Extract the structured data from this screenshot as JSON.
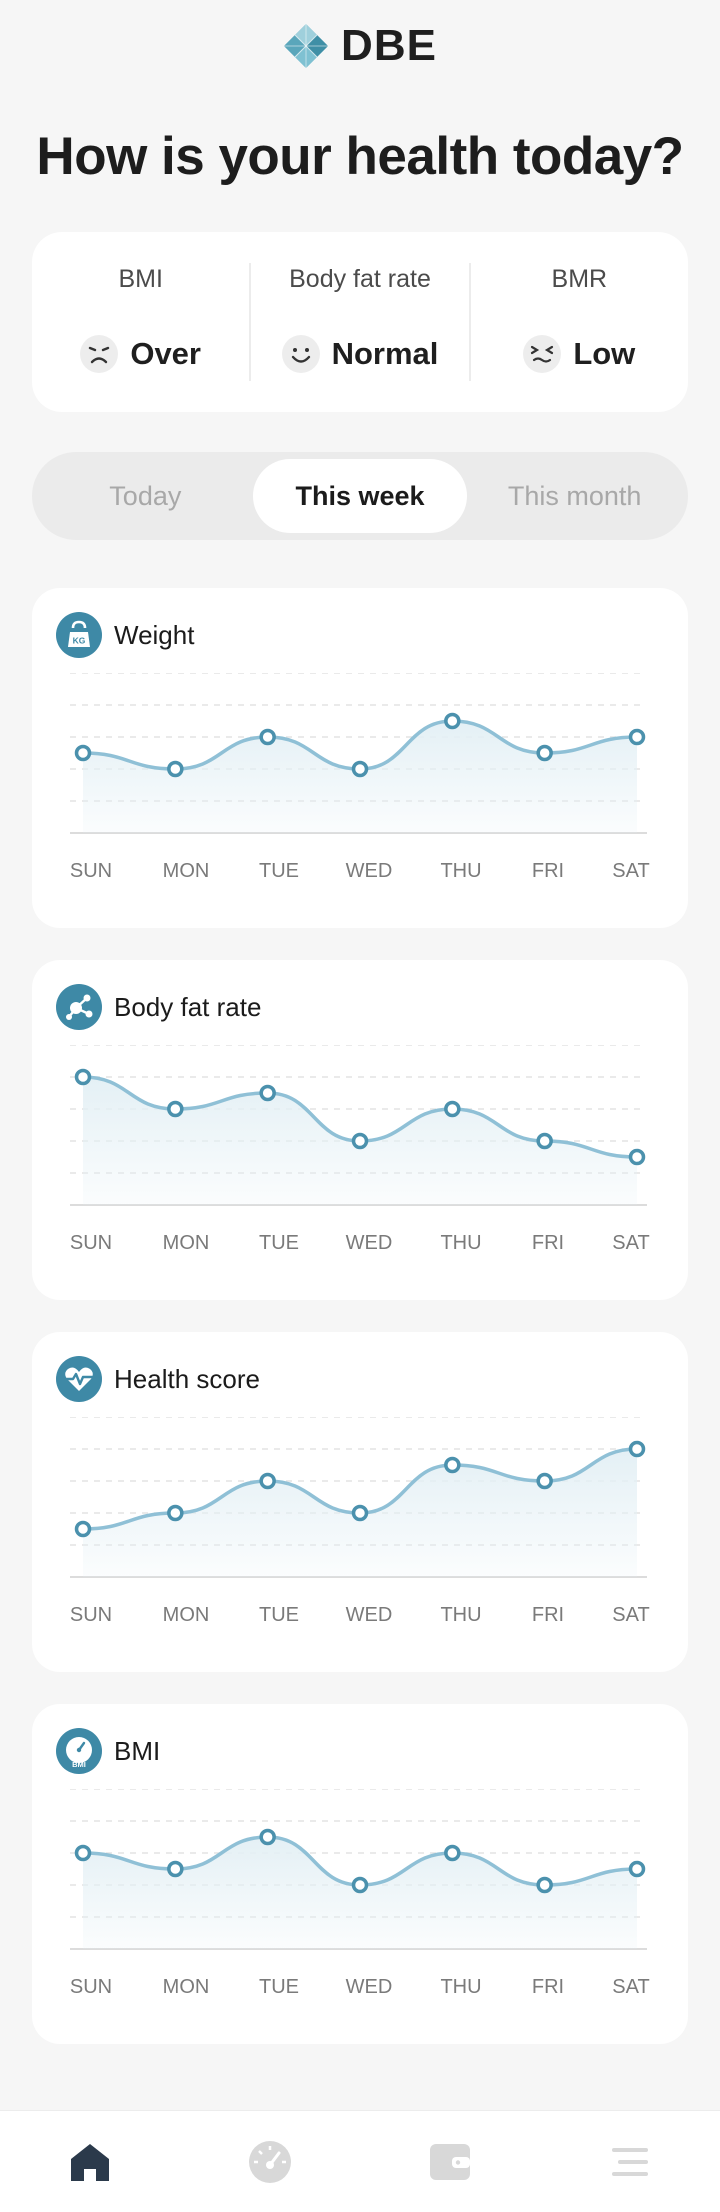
{
  "app": {
    "logo_text": "DBE"
  },
  "headline": "How is your health today?",
  "summary": [
    {
      "label": "BMI",
      "value": "Over",
      "face": "sad-face-icon"
    },
    {
      "label": "Body fat rate",
      "value": "Normal",
      "face": "smile-face-icon"
    },
    {
      "label": "BMR",
      "value": "Low",
      "face": "squint-face-icon"
    }
  ],
  "period_tabs": [
    {
      "label": "Today",
      "active": false
    },
    {
      "label": "This week",
      "active": true
    },
    {
      "label": "This month",
      "active": false
    }
  ],
  "days": [
    "SUN",
    "MON",
    "TUE",
    "WED",
    "THU",
    "FRI",
    "SAT"
  ],
  "colors": {
    "accent": "#4b91ad",
    "line": "#8fc0d6",
    "fill": "#e4f0f5",
    "icon_active": "#2b3a4b",
    "icon_inactive": "#d6d6d6"
  },
  "chart_data": [
    {
      "type": "area",
      "title": "Weight",
      "icon": "kettlebell-icon",
      "categories": [
        "SUN",
        "MON",
        "TUE",
        "WED",
        "THU",
        "FRI",
        "SAT"
      ],
      "values": [
        2.5,
        2.0,
        3.0,
        2.0,
        3.5,
        2.5,
        3.0
      ],
      "ylim": [
        0,
        5
      ]
    },
    {
      "type": "area",
      "title": "Body fat rate",
      "icon": "molecule-icon",
      "categories": [
        "SUN",
        "MON",
        "TUE",
        "WED",
        "THU",
        "FRI",
        "SAT"
      ],
      "values": [
        4.0,
        3.0,
        3.5,
        2.0,
        3.0,
        2.0,
        1.5
      ],
      "ylim": [
        0,
        5
      ]
    },
    {
      "type": "area",
      "title": "Health score",
      "icon": "heart-pulse-icon",
      "categories": [
        "SUN",
        "MON",
        "TUE",
        "WED",
        "THU",
        "FRI",
        "SAT"
      ],
      "values": [
        1.5,
        2.0,
        3.0,
        2.0,
        3.5,
        3.0,
        4.0
      ],
      "ylim": [
        0,
        5
      ]
    },
    {
      "type": "area",
      "title": "BMI",
      "icon": "bmi-gauge-icon",
      "categories": [
        "SUN",
        "MON",
        "TUE",
        "WED",
        "THU",
        "FRI",
        "SAT"
      ],
      "values": [
        3.0,
        2.5,
        3.5,
        2.0,
        3.0,
        2.0,
        2.5
      ],
      "ylim": [
        0,
        5
      ]
    }
  ],
  "nav": [
    {
      "name": "home-icon",
      "active": true
    },
    {
      "name": "gauge-icon",
      "active": false
    },
    {
      "name": "wallet-icon",
      "active": false
    },
    {
      "name": "menu-icon",
      "active": false
    }
  ]
}
